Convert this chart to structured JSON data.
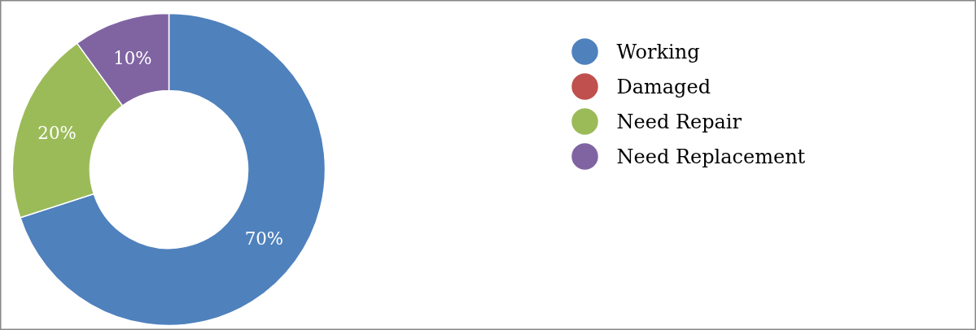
{
  "chart_data": {
    "type": "donut",
    "categories": [
      "Working",
      "Damaged",
      "Need Repair",
      "Need Replacement"
    ],
    "values": [
      70,
      0,
      20,
      10
    ],
    "colors": [
      "#4f81bd",
      "#c0504d",
      "#9bbb59",
      "#8064a2"
    ],
    "value_labels": [
      "70%",
      null,
      "20%",
      "10%"
    ],
    "legend": "top right"
  }
}
